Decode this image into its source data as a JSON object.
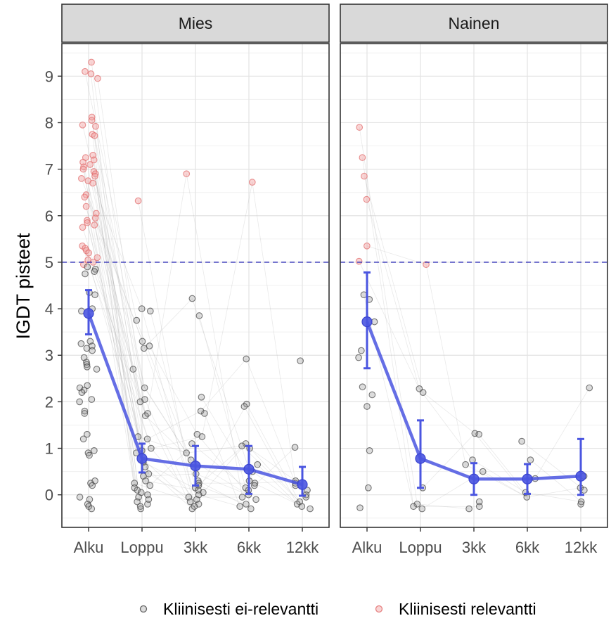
{
  "chart_data": {
    "type": "scatter",
    "ylabel": "IGDT pisteet",
    "xlabel": "",
    "categories": [
      "Alku",
      "Loppu",
      "3kk",
      "6kk",
      "12kk"
    ],
    "ylim": [
      -0.7,
      9.7
    ],
    "yticks": [
      0,
      1,
      2,
      3,
      4,
      5,
      6,
      7,
      8,
      9
    ],
    "grid": true,
    "reference_line": {
      "y": 5,
      "style": "dashed",
      "color": "#2b2bb5"
    },
    "legend": {
      "position": "bottom",
      "entries": [
        {
          "label": "Kliinisesti ei-relevantti",
          "color": "#404040"
        },
        {
          "label": "Kliinisesti relevantti",
          "color": "#e06666"
        }
      ]
    },
    "mean_line_color": "#4a55e0",
    "panels": [
      {
        "label": "Mies",
        "mean": [
          {
            "x": "Alku",
            "y": 3.9,
            "ci_low": 3.45,
            "ci_high": 4.4
          },
          {
            "x": "Loppu",
            "y": 0.78,
            "ci_low": 0.48,
            "ci_high": 1.1
          },
          {
            "x": "3kk",
            "y": 0.62,
            "ci_low": 0.2,
            "ci_high": 1.05
          },
          {
            "x": "6kk",
            "y": 0.55,
            "ci_low": 0.02,
            "ci_high": 1.05
          },
          {
            "x": "12kk",
            "y": 0.22,
            "ci_low": -0.02,
            "ci_high": 0.6
          }
        ],
        "points": {
          "Alku": [
            9.3,
            9.1,
            9.05,
            8.95,
            8.12,
            8.05,
            7.95,
            7.92,
            7.75,
            7.72,
            7.3,
            7.25,
            7.2,
            7.15,
            7.1,
            7.05,
            7.0,
            6.95,
            6.9,
            6.85,
            6.8,
            6.75,
            6.7,
            6.45,
            6.4,
            6.2,
            6.05,
            5.95,
            5.9,
            5.85,
            5.8,
            5.75,
            5.35,
            5.3,
            5.25,
            5.2,
            5.1,
            5.05,
            5.0,
            4.95,
            4.9,
            4.85,
            4.8,
            4.75,
            4.35,
            4.3,
            4.0,
            3.95,
            3.3,
            3.25,
            3.2,
            3.15,
            3.1,
            2.95,
            2.85,
            2.8,
            2.75,
            2.7,
            2.35,
            2.3,
            2.25,
            2.2,
            2.05,
            2.0,
            1.8,
            1.75,
            1.3,
            1.2,
            0.95,
            0.9,
            0.85,
            0.3,
            0.25,
            0.2,
            -0.05,
            -0.1,
            -0.2,
            -0.25,
            -0.3
          ],
          "Loppu": [
            6.32,
            4.0,
            3.95,
            3.75,
            3.3,
            3.2,
            3.15,
            2.7,
            2.3,
            2.05,
            2.0,
            1.75,
            1.7,
            1.25,
            1.2,
            1.0,
            0.95,
            0.9,
            0.7,
            0.6,
            0.45,
            0.4,
            0.3,
            0.25,
            0.2,
            0.15,
            0.1,
            0.05,
            0.0,
            -0.05,
            -0.1,
            -0.15,
            -0.2,
            -0.25,
            -0.3
          ],
          "3kk": [
            6.9,
            4.22,
            3.85,
            2.1,
            1.8,
            1.75,
            1.3,
            1.25,
            1.1,
            0.9,
            0.75,
            0.45,
            0.3,
            0.25,
            0.2,
            0.15,
            0.1,
            0.05,
            0.0,
            -0.05,
            -0.1,
            -0.15,
            -0.2,
            -0.25,
            -0.3
          ],
          "6kk": [
            6.72,
            2.92,
            1.95,
            1.9,
            1.1,
            1.05,
            1.0,
            0.65,
            0.5,
            0.3,
            0.25,
            0.2,
            0.15,
            0.1,
            0.0,
            -0.05,
            -0.1,
            -0.2,
            -0.25,
            -0.3
          ],
          "12kk": [
            2.88,
            1.02,
            0.3,
            0.25,
            0.2,
            0.1,
            0.0,
            -0.05,
            -0.15,
            -0.2,
            -0.25,
            -0.3
          ]
        }
      },
      {
        "label": "Nainen",
        "mean": [
          {
            "x": "Alku",
            "y": 3.72,
            "ci_low": 2.72,
            "ci_high": 4.78
          },
          {
            "x": "Loppu",
            "y": 0.78,
            "ci_low": 0.15,
            "ci_high": 1.6
          },
          {
            "x": "3kk",
            "y": 0.34,
            "ci_low": 0.0,
            "ci_high": 0.68
          },
          {
            "x": "6kk",
            "y": 0.34,
            "ci_low": 0.02,
            "ci_high": 0.66
          },
          {
            "x": "12kk",
            "y": 0.4,
            "ci_low": 0.0,
            "ci_high": 1.2
          }
        ],
        "points": {
          "Alku": [
            7.9,
            7.25,
            6.85,
            6.35,
            5.35,
            5.02,
            4.3,
            4.2,
            3.72,
            3.1,
            2.95,
            2.32,
            2.15,
            1.9,
            0.95,
            0.15,
            -0.28
          ],
          "Loppu": [
            4.95,
            2.28,
            2.2,
            0.15,
            -0.2,
            -0.25,
            -0.3
          ],
          "3kk": [
            1.32,
            1.3,
            0.75,
            0.65,
            0.5,
            -0.15,
            -0.25,
            -0.3
          ],
          "6kk": [
            1.15,
            0.75,
            0.35,
            0.05,
            -0.05
          ],
          "12kk": [
            2.3,
            0.4,
            0.15,
            0.1,
            -0.15,
            -0.2
          ]
        }
      }
    ]
  }
}
